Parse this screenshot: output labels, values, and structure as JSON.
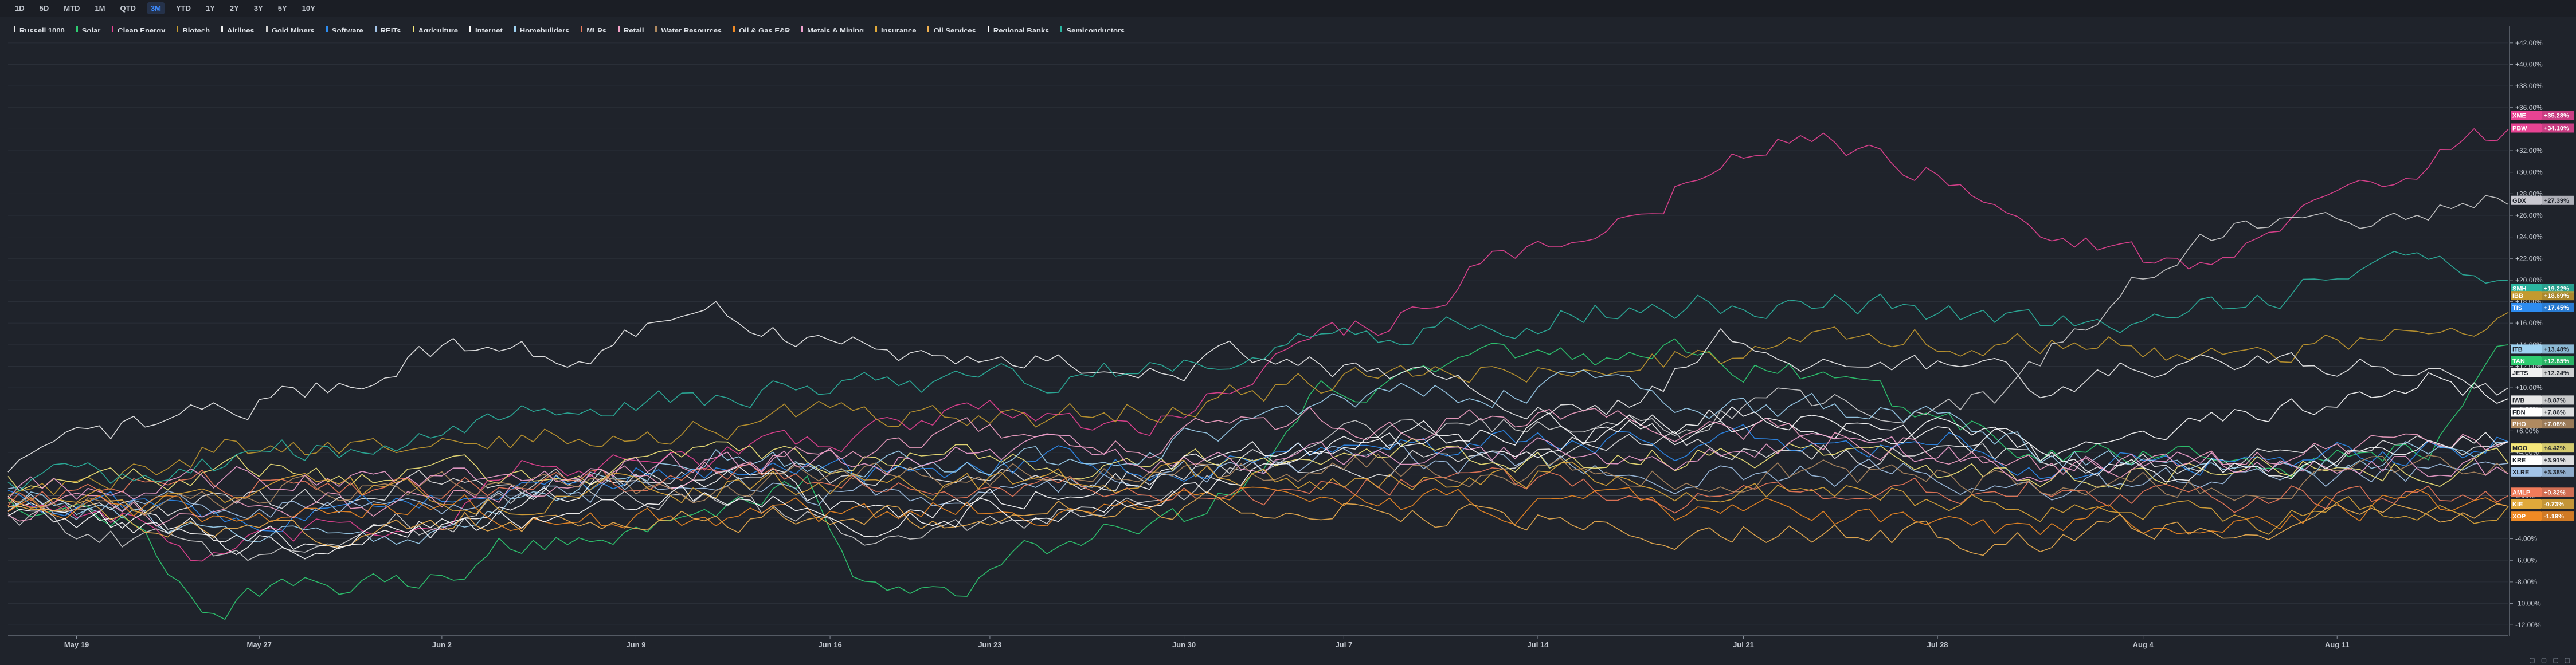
{
  "toolbar": {
    "ranges": [
      "1D",
      "5D",
      "MTD",
      "1M",
      "QTD",
      "3M",
      "YTD",
      "1Y",
      "2Y",
      "3Y",
      "5Y",
      "10Y"
    ],
    "active": "3M"
  },
  "colors": {
    "background": "#1f232b",
    "grid": "#2a2f38",
    "axis_text": "#c3c8d0",
    "active_range": "#3d8bff"
  },
  "chart_data": {
    "type": "line",
    "ylim": [
      -13,
      43
    ],
    "y_ticks": [
      -12,
      -10,
      -8,
      -6,
      -4,
      -2,
      0,
      2,
      4,
      6,
      8,
      10,
      12,
      14,
      16,
      18,
      20,
      22,
      24,
      26,
      28,
      30,
      32,
      34,
      36,
      38,
      40,
      42
    ],
    "x_ticks": [
      {
        "label": "May 19",
        "index": 6
      },
      {
        "label": "May 27",
        "index": 22
      },
      {
        "label": "Jun 2",
        "index": 38
      },
      {
        "label": "Jun 9",
        "index": 55
      },
      {
        "label": "Jun 16",
        "index": 72
      },
      {
        "label": "Jun 23",
        "index": 86
      },
      {
        "label": "Jun 30",
        "index": 103
      },
      {
        "label": "Jul 7",
        "index": 117
      },
      {
        "label": "Jul 14",
        "index": 134
      },
      {
        "label": "Jul 21",
        "index": 152
      },
      {
        "label": "Jul 28",
        "index": 169
      },
      {
        "label": "Aug 4",
        "index": 187
      },
      {
        "label": "Aug 11",
        "index": 204
      }
    ],
    "n_points": 220,
    "series": [
      {
        "name": "Russell 1000",
        "color": "#e8e8e8",
        "knots": [
          0,
          -1,
          15,
          -1,
          40,
          1,
          60,
          2,
          90,
          2,
          110,
          3,
          130,
          4,
          150,
          4,
          170,
          4,
          185,
          3,
          200,
          4,
          219,
          5
        ]
      },
      {
        "name": "Solar",
        "color": "#2ecc71",
        "knots": [
          0,
          0,
          10,
          -2,
          17,
          -10,
          25,
          -9,
          35,
          -8,
          45,
          -4,
          60,
          -3,
          70,
          2,
          75,
          -8,
          82,
          -9,
          95,
          -3,
          105,
          -2,
          115,
          10,
          130,
          12,
          145,
          13,
          155,
          12,
          165,
          8,
          180,
          4,
          200,
          3,
          212,
          5,
          219,
          14
        ]
      },
      {
        "name": "Clean Energy",
        "color": "#e84393",
        "knots": [
          0,
          0,
          10,
          -2,
          17,
          -6,
          25,
          -4,
          35,
          -3,
          45,
          2,
          60,
          3,
          75,
          6,
          85,
          8,
          100,
          6,
          110,
          13,
          120,
          16,
          130,
          22,
          140,
          23,
          150,
          32,
          160,
          33,
          170,
          30,
          180,
          24,
          190,
          21,
          200,
          26,
          210,
          30,
          219,
          34
        ]
      },
      {
        "name": "Biotech",
        "color": "#c49a2f",
        "knots": [
          0,
          0,
          10,
          2,
          20,
          5,
          35,
          4,
          45,
          5,
          60,
          6,
          75,
          8,
          90,
          7,
          105,
          9,
          120,
          11,
          135,
          12,
          150,
          13,
          165,
          15,
          180,
          14,
          195,
          13,
          205,
          14,
          212,
          16,
          219,
          17
        ]
      },
      {
        "name": "Airlines",
        "color": "#f0f0f0",
        "knots": [
          0,
          2,
          10,
          6,
          18,
          8,
          28,
          10,
          38,
          14,
          50,
          13,
          62,
          17,
          72,
          14,
          85,
          13,
          100,
          12,
          112,
          13,
          125,
          10,
          140,
          7,
          150,
          14,
          158,
          13,
          168,
          12,
          180,
          10,
          190,
          13,
          200,
          12,
          210,
          12,
          219,
          10
        ]
      },
      {
        "name": "Gold Miners",
        "color": "#d0d0d0",
        "knots": [
          0,
          -2,
          10,
          -4,
          20,
          -6,
          30,
          -3,
          40,
          -2,
          50,
          1,
          60,
          0,
          70,
          -2,
          78,
          -5,
          90,
          -2,
          105,
          1,
          118,
          6,
          130,
          6,
          145,
          7,
          155,
          9,
          165,
          8,
          175,
          9,
          185,
          19,
          195,
          25,
          205,
          27,
          212,
          26,
          219,
          27
        ]
      },
      {
        "name": "Software",
        "color": "#2d8cf0",
        "knots": [
          0,
          0,
          12,
          -1,
          25,
          -2,
          40,
          0,
          55,
          2,
          70,
          2,
          85,
          3,
          100,
          3,
          115,
          4,
          130,
          5,
          145,
          5,
          160,
          5,
          170,
          5,
          180,
          2,
          195,
          4,
          210,
          4,
          219,
          5
        ]
      },
      {
        "name": "REITs",
        "color": "#a3c4e8",
        "knots": [
          0,
          0,
          15,
          -1,
          30,
          -1,
          45,
          0,
          60,
          1,
          75,
          0,
          90,
          1,
          105,
          2,
          120,
          3,
          135,
          3,
          150,
          2,
          165,
          2,
          180,
          1,
          195,
          2,
          210,
          2,
          219,
          3
        ]
      },
      {
        "name": "Agriculture",
        "color": "#f5e77a",
        "knots": [
          0,
          1,
          15,
          2,
          30,
          2,
          45,
          2,
          60,
          3,
          75,
          4,
          90,
          3,
          105,
          3,
          120,
          4,
          135,
          3,
          150,
          4,
          165,
          3,
          180,
          2,
          195,
          3,
          210,
          3,
          219,
          3
        ]
      },
      {
        "name": "Internet",
        "color": "#ffffff",
        "knots": [
          0,
          -1,
          12,
          -3,
          25,
          -4,
          38,
          -2,
          50,
          0,
          62,
          2,
          75,
          -2,
          90,
          0,
          105,
          3,
          118,
          5,
          130,
          6,
          145,
          6,
          155,
          7,
          165,
          6,
          175,
          5,
          185,
          5,
          195,
          7,
          205,
          9,
          212,
          12,
          219,
          9
        ]
      },
      {
        "name": "Homebuilders",
        "color": "#9fd3f2",
        "knots": [
          0,
          0,
          10,
          -2,
          20,
          -4,
          30,
          -4,
          40,
          -2,
          52,
          2,
          64,
          4,
          75,
          2,
          88,
          3,
          100,
          4,
          112,
          8,
          124,
          9,
          136,
          10,
          148,
          9,
          158,
          8,
          168,
          7,
          178,
          4,
          190,
          3,
          200,
          3,
          210,
          4,
          219,
          5
        ]
      },
      {
        "name": "MLPs",
        "color": "#f07b5a",
        "knots": [
          0,
          0,
          15,
          1,
          30,
          1,
          45,
          1,
          60,
          2,
          75,
          1,
          90,
          1,
          105,
          0,
          120,
          1,
          135,
          1,
          150,
          0,
          165,
          1,
          180,
          1,
          195,
          0,
          210,
          0,
          219,
          0
        ]
      },
      {
        "name": "Retail",
        "color": "#f5a3c7",
        "knots": [
          0,
          -1,
          12,
          -2,
          25,
          -1,
          40,
          0,
          55,
          2,
          70,
          4,
          85,
          6,
          100,
          5,
          115,
          7,
          130,
          7,
          145,
          7,
          160,
          6,
          175,
          3,
          190,
          2,
          205,
          4,
          219,
          5
        ]
      },
      {
        "name": "Water Resources",
        "color": "#b08a60",
        "knots": [
          0,
          0,
          15,
          0,
          30,
          1,
          45,
          1,
          60,
          1,
          75,
          2,
          90,
          2,
          105,
          2,
          120,
          3,
          135,
          2,
          150,
          2,
          165,
          2,
          180,
          1,
          195,
          1,
          210,
          2,
          219,
          2
        ]
      },
      {
        "name": "Oil & Gas E&P",
        "color": "#f08a24",
        "knots": [
          0,
          -1,
          12,
          -1,
          25,
          -2,
          40,
          -1,
          55,
          -2,
          70,
          -2,
          85,
          -1,
          100,
          -1,
          115,
          0,
          130,
          -1,
          145,
          -1,
          160,
          -2,
          175,
          -3,
          190,
          -2,
          205,
          -1,
          219,
          -1
        ]
      },
      {
        "name": "Metals & Mining",
        "color": "#f2a2d0",
        "knots": [
          0,
          0,
          15,
          1,
          30,
          2,
          45,
          2,
          60,
          3,
          75,
          3,
          90,
          4,
          105,
          3,
          120,
          4,
          135,
          4,
          150,
          4,
          165,
          4,
          180,
          3,
          195,
          3,
          210,
          3,
          219,
          2
        ]
      },
      {
        "name": "Insurance",
        "color": "#e0a93a",
        "knots": [
          0,
          0,
          15,
          -1,
          30,
          0,
          45,
          0,
          60,
          1,
          75,
          1,
          90,
          1,
          105,
          2,
          120,
          2,
          135,
          2,
          150,
          1,
          165,
          0,
          180,
          -1,
          195,
          -2,
          210,
          -2,
          219,
          -1
        ]
      },
      {
        "name": "Oil Services",
        "color": "#f0b050",
        "knots": [
          0,
          -1,
          12,
          -2,
          25,
          -3,
          40,
          -2,
          55,
          -3,
          70,
          -2,
          85,
          -2,
          100,
          -1,
          115,
          -1,
          130,
          -2,
          145,
          -3,
          160,
          -3,
          175,
          -4,
          190,
          -3,
          205,
          -2,
          219,
          -1
        ]
      },
      {
        "name": "Regional Banks",
        "color": "#ffffff",
        "knots": [
          0,
          -2,
          12,
          -3,
          25,
          -5,
          38,
          -3,
          50,
          -1,
          62,
          0,
          75,
          -2,
          90,
          -1,
          105,
          1,
          118,
          4,
          130,
          5,
          142,
          6,
          152,
          8,
          160,
          7,
          170,
          6,
          180,
          3,
          190,
          2,
          200,
          3,
          210,
          4,
          219,
          5
        ]
      },
      {
        "name": "Semiconductors",
        "color": "#2bb5a0",
        "knots": [
          0,
          1,
          12,
          2,
          25,
          4,
          38,
          5,
          50,
          8,
          62,
          9,
          75,
          10,
          88,
          11,
          100,
          12,
          112,
          14,
          124,
          15,
          136,
          17,
          148,
          18,
          160,
          18,
          170,
          17,
          180,
          16,
          190,
          17,
          200,
          19,
          210,
          22,
          219,
          20
        ]
      }
    ],
    "end_tags": [
      {
        "symbol": "XME",
        "value": "+35.28%",
        "y": 35.28,
        "color": "#e84393"
      },
      {
        "symbol": "PBW",
        "value": "+34.10%",
        "y": 34.1,
        "color": "#e84393"
      },
      {
        "symbol": "GDX",
        "value": "+27.39%",
        "y": 27.39,
        "color": "#c8c8d0"
      },
      {
        "symbol": "SMH",
        "value": "+19.22%",
        "y": 19.22,
        "color": "#2bb5a0"
      },
      {
        "symbol": "IBB",
        "value": "+18.69%",
        "y": 18.55,
        "color": "#c49a2f"
      },
      {
        "symbol": "TIS",
        "value": "+17.45%",
        "y": 17.45,
        "color": "#2d8cf0"
      },
      {
        "symbol": "ITB",
        "value": "+13.48%",
        "y": 13.6,
        "color": "#9fd3f2"
      },
      {
        "symbol": "TAN",
        "value": "+12.85%",
        "y": 12.5,
        "color": "#2ecc71"
      },
      {
        "symbol": "JETS",
        "value": "+12.24%",
        "y": 11.4,
        "color": "#f0f0f0"
      },
      {
        "symbol": "IWB",
        "value": "+8.87%",
        "y": 8.87,
        "color": "#e8e8e8"
      },
      {
        "symbol": "FDN",
        "value": "+7.86%",
        "y": 7.75,
        "color": "#ffffff"
      },
      {
        "symbol": "PHO",
        "value": "+7.08%",
        "y": 6.65,
        "color": "#b08a60"
      },
      {
        "symbol": "MOO",
        "value": "+4.42%",
        "y": 4.42,
        "color": "#f5e77a"
      },
      {
        "symbol": "KRE",
        "value": "+3.91%",
        "y": 3.3,
        "color": "#ffffff"
      },
      {
        "symbol": "XLRE",
        "value": "+3.38%",
        "y": 2.2,
        "color": "#a3c4e8"
      },
      {
        "symbol": "AMLP",
        "value": "+0.32%",
        "y": 0.32,
        "color": "#f07b5a"
      },
      {
        "symbol": "KIE",
        "value": "-0.73%",
        "y": -0.78,
        "color": "#e0a93a"
      },
      {
        "symbol": "XOP",
        "value": "-1.19%",
        "y": -1.9,
        "color": "#f08a24"
      }
    ]
  }
}
